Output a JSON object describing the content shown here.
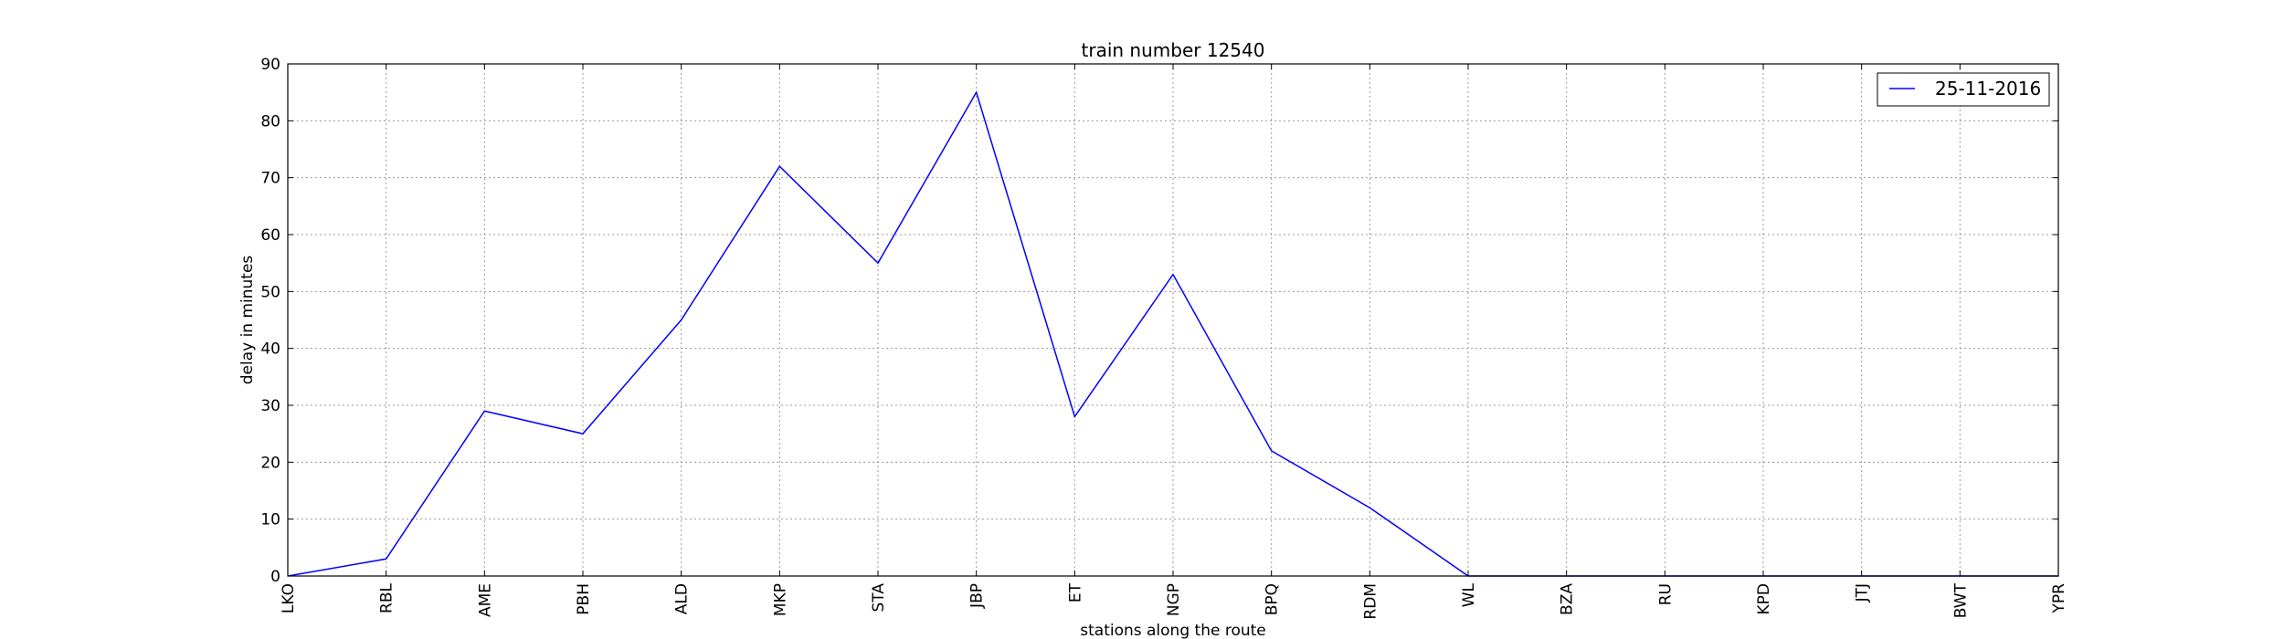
{
  "chart_data": {
    "type": "line",
    "title": "train number 12540",
    "xlabel": "stations along the route",
    "ylabel": "delay in minutes",
    "categories": [
      "LKO",
      "RBL",
      "AME",
      "PBH",
      "ALD",
      "MKP",
      "STA",
      "JBP",
      "ET",
      "NGP",
      "BPQ",
      "RDM",
      "WL",
      "BZA",
      "RU",
      "KPD",
      "JTJ",
      "BWT",
      "YPR"
    ],
    "ylim": [
      0,
      90
    ],
    "yticks": [
      0,
      10,
      20,
      30,
      40,
      50,
      60,
      70,
      80,
      90
    ],
    "grid": true,
    "legend_position": "top-right",
    "series": [
      {
        "name": "25-11-2016",
        "color": "#0000ff",
        "values": [
          0,
          3,
          29,
          25,
          45,
          72,
          55,
          85,
          28,
          53,
          22,
          12,
          0,
          0,
          0,
          0,
          0,
          0,
          0
        ]
      }
    ]
  }
}
